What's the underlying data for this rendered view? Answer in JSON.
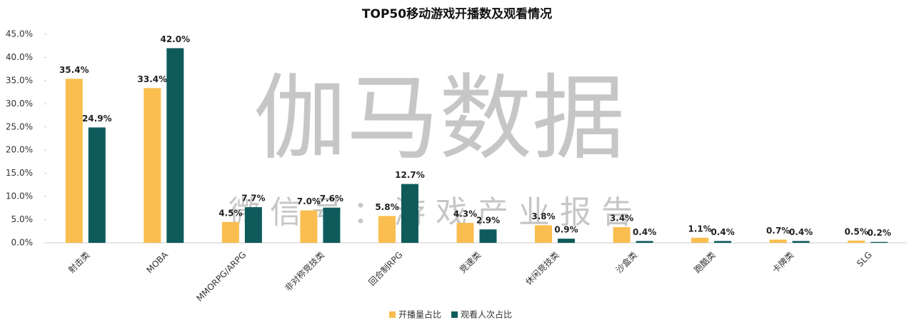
{
  "chart_data": {
    "type": "bar",
    "title": "TOP50移动游戏开播数及观看情况",
    "categories": [
      "射击类",
      "MOBA",
      "MMORPG/ARPG",
      "非对称竞技类",
      "回合制RPG",
      "竞速类",
      "休闲竞技类",
      "沙盒类",
      "跑酷类",
      "卡牌类",
      "SLG"
    ],
    "series": [
      {
        "name": "开播量占比",
        "color": "#F9BE4F",
        "values": [
          35.4,
          33.4,
          4.5,
          7.0,
          5.8,
          4.3,
          3.8,
          3.4,
          1.1,
          0.7,
          0.5
        ],
        "value_labels": [
          "35.4%",
          "33.4%",
          "4.5%",
          "7.0%",
          "5.8%",
          "4.3%",
          "3.8%",
          "3.4%",
          "1.1%",
          "0.7%",
          "0.5%"
        ]
      },
      {
        "name": "观看人次占比",
        "color": "#0F5B5C",
        "values": [
          24.9,
          42.0,
          7.7,
          7.6,
          12.7,
          2.9,
          0.9,
          0.4,
          0.4,
          0.4,
          0.2
        ],
        "value_labels": [
          "24.9%",
          "42.0%",
          "7.7%",
          "7.6%",
          "12.7%",
          "2.9%",
          "0.9%",
          "0.4%",
          "0.4%",
          "0.4%",
          "0.2%"
        ]
      }
    ],
    "ylim": [
      0,
      45
    ],
    "yticks": [
      {
        "value": 0,
        "label": "0.0%"
      },
      {
        "value": 5,
        "label": "5.0%"
      },
      {
        "value": 10,
        "label": "10.0%"
      },
      {
        "value": 15,
        "label": "15.0%"
      },
      {
        "value": 20,
        "label": "20.0%"
      },
      {
        "value": 25,
        "label": "25.0%"
      },
      {
        "value": 30,
        "label": "30.0%"
      },
      {
        "value": 35,
        "label": "35.0%"
      },
      {
        "value": 40,
        "label": "40.0%"
      },
      {
        "value": 45,
        "label": "45.0%"
      }
    ],
    "legend": "bottom",
    "watermark": {
      "main": "伽马数据",
      "sub": "微信号：游戏产业报告"
    }
  }
}
